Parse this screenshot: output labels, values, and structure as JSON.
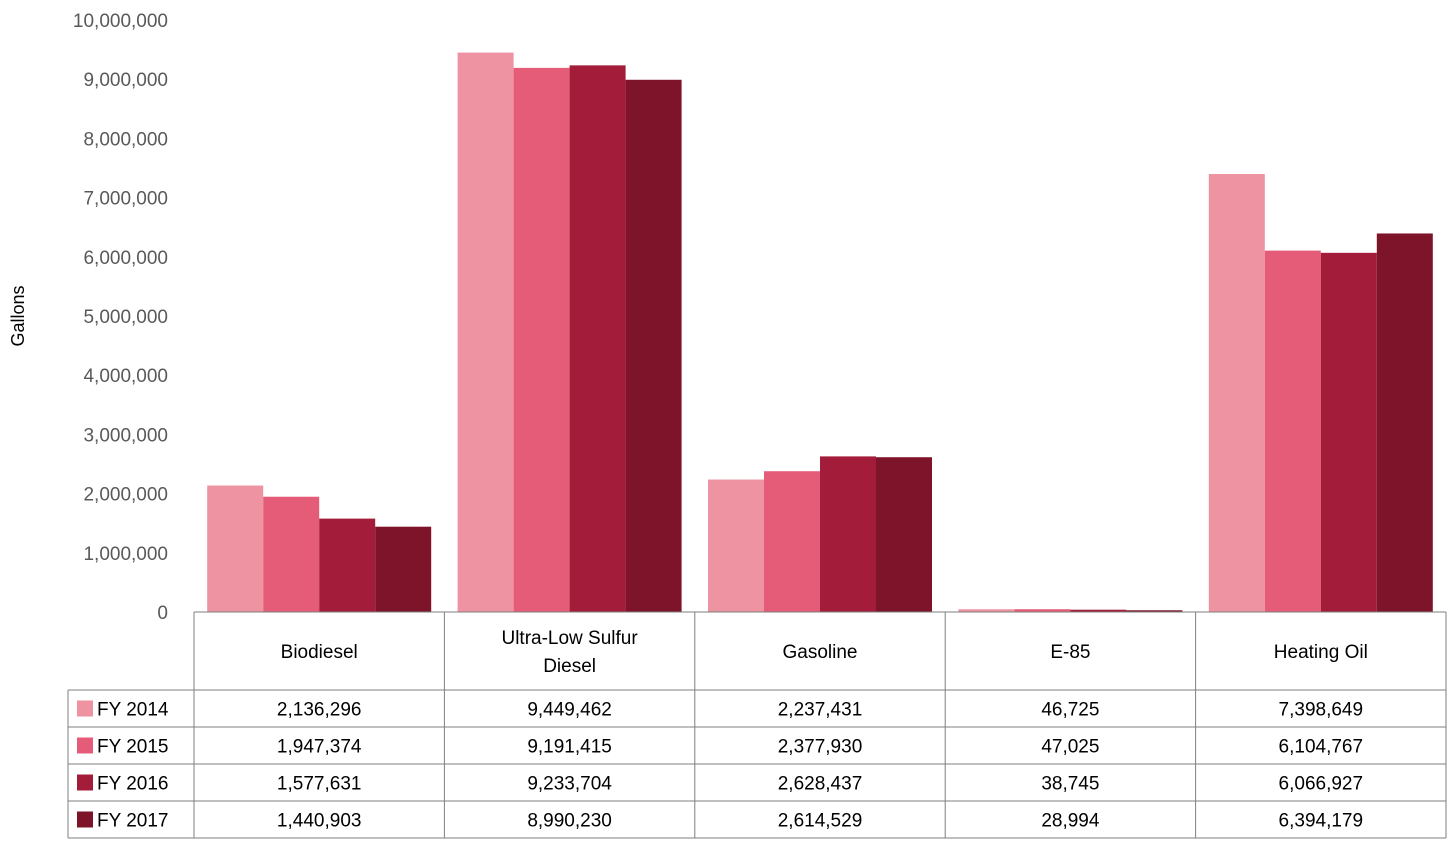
{
  "chart_data": {
    "type": "bar",
    "ylabel": "Gallons",
    "xlabel": "",
    "ylim": [
      0,
      10000000
    ],
    "y_ticks": [
      "0",
      "1,000,000",
      "2,000,000",
      "3,000,000",
      "4,000,000",
      "5,000,000",
      "6,000,000",
      "7,000,000",
      "8,000,000",
      "9,000,000",
      "10,000,000"
    ],
    "grid": false,
    "legend_placement": "data-table-left",
    "categories": [
      [
        "Biodiesel"
      ],
      [
        "Ultra-Low Sulfur",
        "Diesel"
      ],
      [
        "Gasoline"
      ],
      [
        "E-85"
      ],
      [
        "Heating Oil"
      ]
    ],
    "series": [
      {
        "name": "FY 2014",
        "color": "#ee93a1",
        "values": [
          2136296,
          9449462,
          2237431,
          46725,
          7398649
        ],
        "labels": [
          "2,136,296",
          "9,449,462",
          "2,237,431",
          "46,725",
          "7,398,649"
        ]
      },
      {
        "name": "FY 2015",
        "color": "#e45c77",
        "values": [
          1947374,
          9191415,
          2377930,
          47025,
          6104767
        ],
        "labels": [
          "1,947,374",
          "9,191,415",
          "2,377,930",
          "47,025",
          "6,104,767"
        ]
      },
      {
        "name": "FY 2016",
        "color": "#a31c3a",
        "values": [
          1577631,
          9233704,
          2628437,
          38745,
          6066927
        ],
        "labels": [
          "1,577,631",
          "9,233,704",
          "2,628,437",
          "38,745",
          "6,066,927"
        ]
      },
      {
        "name": "FY 2017",
        "color": "#7e1429",
        "values": [
          1440903,
          8990230,
          2614529,
          28994,
          6394179
        ],
        "labels": [
          "1,440,903",
          "8,990,230",
          "2,614,529",
          "28,994",
          "6,394,179"
        ]
      }
    ]
  }
}
